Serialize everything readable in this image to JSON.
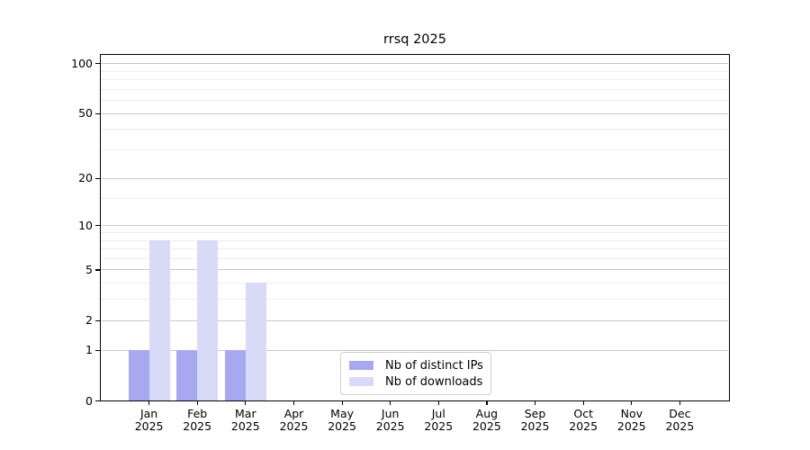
{
  "chart_data": {
    "type": "bar",
    "title": "rrsq 2025",
    "categories": [
      "Jan 2025",
      "Feb 2025",
      "Mar 2025",
      "Apr 2025",
      "May 2025",
      "Jun 2025",
      "Jul 2025",
      "Aug 2025",
      "Sep 2025",
      "Oct 2025",
      "Nov 2025",
      "Dec 2025"
    ],
    "series": [
      {
        "name": "Nb of distinct IPs",
        "color": "#a8a8f0",
        "values": [
          1,
          1,
          1,
          0,
          0,
          0,
          0,
          0,
          0,
          0,
          0,
          0
        ]
      },
      {
        "name": "Nb of downloads",
        "color": "#d9d9f8",
        "values": [
          8,
          8,
          4,
          0,
          0,
          0,
          0,
          0,
          0,
          0,
          0,
          0
        ]
      }
    ],
    "y_axis": {
      "scale": "log1p",
      "tick_values": [
        0,
        1,
        2,
        5,
        10,
        20,
        50,
        100
      ],
      "minor_gridline_values": [
        3,
        4,
        6,
        7,
        8,
        9,
        15,
        30,
        40,
        60,
        70,
        80,
        90
      ],
      "range": [
        0,
        115
      ]
    },
    "x_axis": {
      "label_year_on_second_line": true
    },
    "grid": "horizontal",
    "legend_position": "lower-center-inside"
  }
}
